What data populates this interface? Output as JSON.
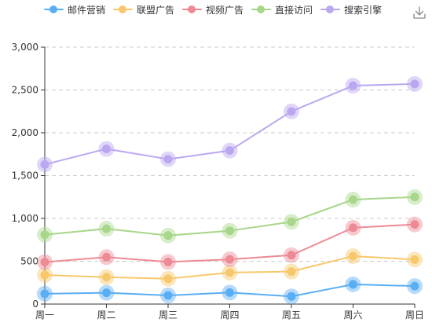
{
  "toolbox": {
    "icon": "download-icon"
  },
  "chart_data": {
    "type": "line",
    "categories": [
      "周一",
      "周二",
      "周三",
      "周四",
      "周五",
      "周六",
      "周日"
    ],
    "yticks": [
      "0",
      "500",
      "1,000",
      "1,500",
      "2,000",
      "2,500",
      "3,000"
    ],
    "ylim": [
      0,
      3000
    ],
    "grid": true,
    "legend_position": "top",
    "series": [
      {
        "name": "邮件营销",
        "color": "#5aaef3",
        "values": [
          120,
          132,
          101,
          134,
          90,
          230,
          210
        ]
      },
      {
        "name": "联盟广告",
        "color": "#f7c86b",
        "values": [
          340,
          314,
          296,
          368,
          380,
          560,
          520
        ]
      },
      {
        "name": "视频广告",
        "color": "#ee8a95",
        "values": [
          490,
          548,
          492,
          522,
          571,
          891,
          930
        ]
      },
      {
        "name": "直接访问",
        "color": "#a8d68a",
        "values": [
          810,
          880,
          800,
          856,
          960,
          1220,
          1250
        ]
      },
      {
        "name": "搜索引擎",
        "color": "#bba7f0",
        "values": [
          1630,
          1812,
          1692,
          1792,
          2250,
          2550,
          2570
        ]
      }
    ]
  }
}
